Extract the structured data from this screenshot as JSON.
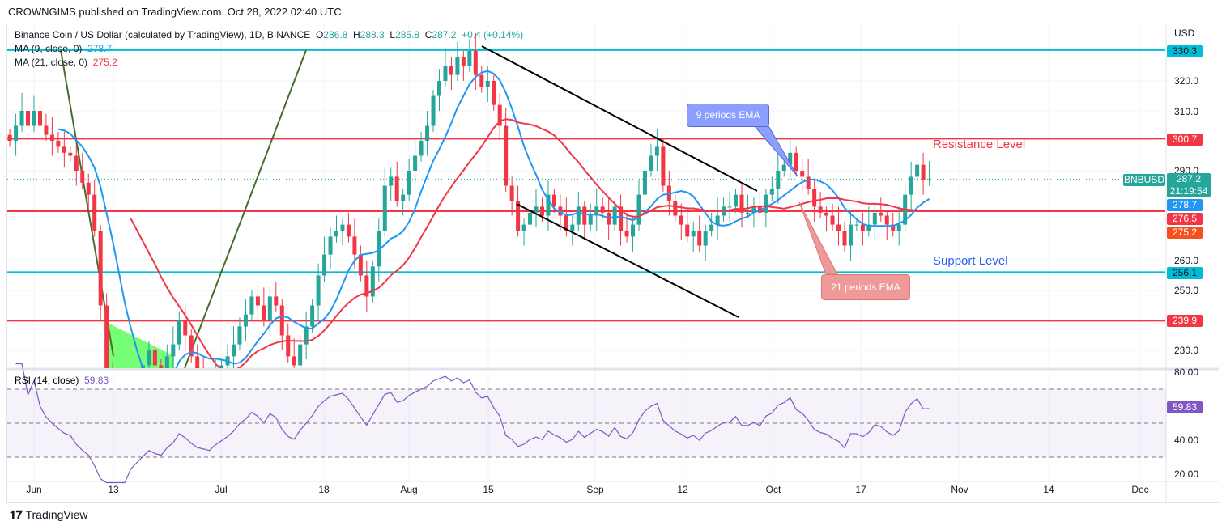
{
  "header": {
    "published": "CROWNGIMS published on TradingView.com, Oct 28, 2022 02:40 UTC"
  },
  "legend": {
    "symbol": "Binance Coin / US Dollar (calculated by TradingView), 1D, BINANCE",
    "o_label": "O",
    "o": "286.8",
    "h_label": "H",
    "h": "288.3",
    "l_label": "L",
    "l": "285.8",
    "c_label": "C",
    "c": "287.2",
    "change": "+0.4 (+0.14%)",
    "ma9_label": "MA (9, close, 0)",
    "ma9": "278.7",
    "ma21_label": "MA (21, close, 0)",
    "ma21": "275.2",
    "rsi_label": "RSI (14, close)",
    "rsi": "59.83"
  },
  "annotations": {
    "ema9": "9 periods EMA",
    "ema21": "21 periods EMA",
    "resistance": "Resistance Level",
    "support": "Support Level"
  },
  "price_axis": {
    "currency": "USD",
    "ticks": [
      "320.0",
      "310.0",
      "290.0",
      "260.0",
      "250.0",
      "230.0"
    ],
    "tags": {
      "h1": "330.3",
      "h2": "300.7",
      "price": "287.2",
      "countdown": "21:19:54",
      "symbol": "BNBUSD",
      "ma9": "278.7",
      "h3": "276.5",
      "ma21": "275.2",
      "h4": "256.1",
      "h5": "239.9"
    }
  },
  "rsi_axis": {
    "ticks": [
      "80.00",
      "40.00",
      "20.00"
    ],
    "value": "59.83"
  },
  "time_axis": [
    "Jun",
    "13",
    "Jul",
    "18",
    "Aug",
    "15",
    "Sep",
    "12",
    "Oct",
    "17",
    "Nov",
    "14",
    "Dec"
  ],
  "footer": {
    "brand": "TradingView"
  },
  "colors": {
    "up": "#26a69a",
    "down": "#f23645",
    "ma9": "#2196f3",
    "ma21": "#f23645",
    "rsi": "#7e57c2",
    "cyan": "#00bcd4"
  },
  "chart_data": {
    "type": "candlestick",
    "title": "Binance Coin / US Dollar, 1D",
    "x_start": "May 28 2022",
    "x_end": "Oct 28 2022",
    "ylim": [
      224,
      340
    ],
    "horizontal_levels": [
      330.3,
      300.7,
      276.5,
      256.1,
      239.9
    ],
    "closes": [
      300,
      305,
      310,
      305,
      310,
      305,
      302,
      300,
      298,
      296,
      295,
      290,
      286,
      282,
      270,
      245,
      220,
      215,
      205,
      200,
      215,
      220,
      225,
      230,
      225,
      222,
      228,
      232,
      240,
      235,
      228,
      222,
      220,
      218,
      222,
      225,
      228,
      232,
      238,
      242,
      248,
      245,
      240,
      248,
      245,
      235,
      228,
      225,
      232,
      238,
      245,
      255,
      262,
      268,
      270,
      272,
      268,
      262,
      255,
      248,
      258,
      270,
      285,
      288,
      280,
      282,
      290,
      295,
      300,
      305,
      315,
      320,
      325,
      322,
      328,
      325,
      330,
      322,
      318,
      320,
      312,
      305,
      285,
      280,
      270,
      272,
      276,
      278,
      275,
      282,
      278,
      275,
      270,
      272,
      278,
      272,
      275,
      278,
      276,
      272,
      278,
      270,
      268,
      272,
      282,
      290,
      295,
      298,
      285,
      280,
      275,
      272,
      268,
      270,
      265,
      270,
      272,
      275,
      278,
      278,
      282,
      276,
      276,
      278,
      276,
      282,
      284,
      290,
      292,
      296,
      290,
      288,
      284,
      278,
      276,
      275,
      272,
      270,
      265,
      272,
      272,
      270,
      272,
      276,
      275,
      272,
      270,
      272,
      282,
      288,
      292,
      287,
      287.2
    ],
    "rsi_ylim": [
      15,
      85
    ],
    "rsi_levels": [
      70,
      50,
      30
    ]
  }
}
